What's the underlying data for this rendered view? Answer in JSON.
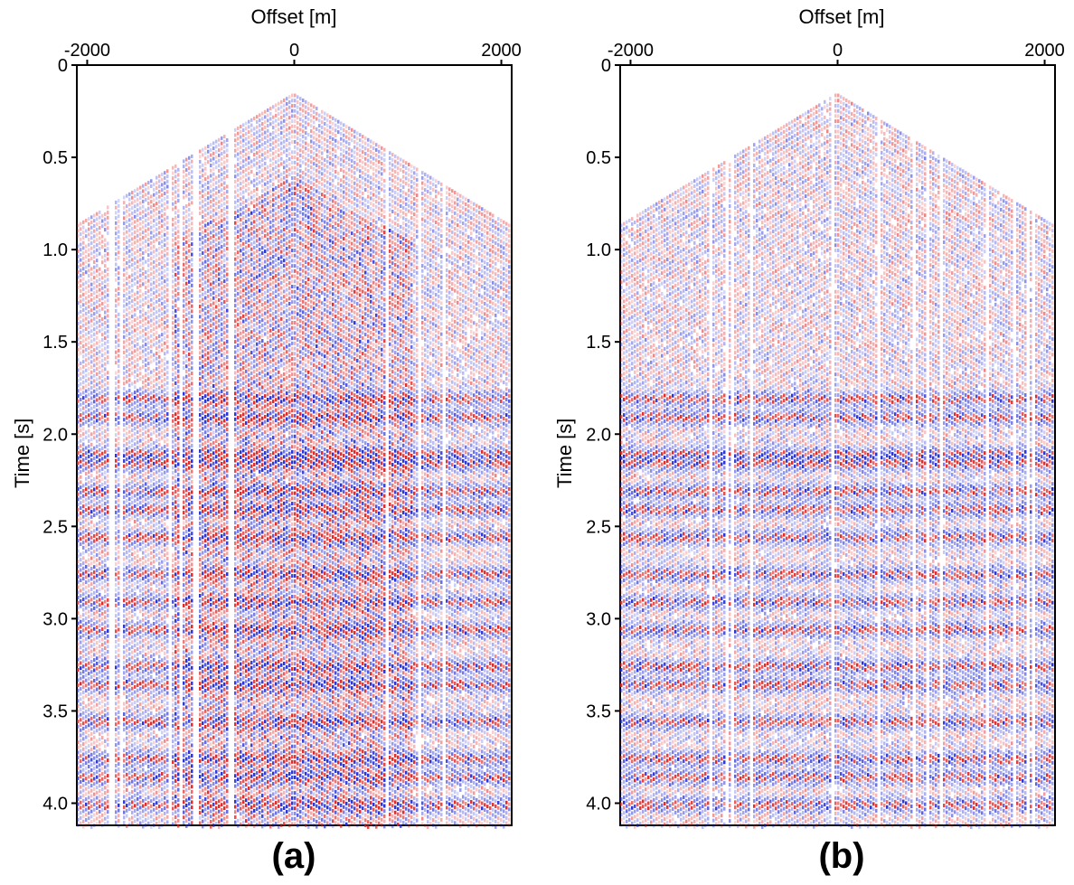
{
  "figure": {
    "panels": [
      {
        "id": "a",
        "label": "(a)",
        "xlabel": "Offset [m]",
        "ylabel": "Time [s]"
      },
      {
        "id": "b",
        "label": "(b)",
        "xlabel": "Offset [m]",
        "ylabel": "Time [s]"
      }
    ],
    "x_ticks": [
      "-2000",
      "0",
      "2000"
    ],
    "y_ticks": [
      "0",
      "0.5",
      "1.0",
      "1.5",
      "2.0",
      "2.5",
      "3.0",
      "3.5",
      "4.0"
    ],
    "x_range": [
      -2100,
      2100
    ],
    "y_range": [
      0,
      4.12
    ],
    "colors": {
      "positive": "#e02020",
      "negative": "#1f2ad8",
      "background": "#ffffff"
    }
  }
}
